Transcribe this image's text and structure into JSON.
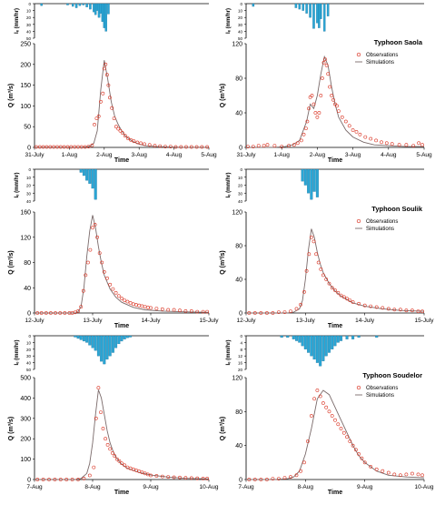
{
  "legend": {
    "observations": "Observations",
    "simulations": "Simulations"
  },
  "colors": {
    "rain": "#2aa6d5",
    "rain_stroke": "#1b6f98",
    "observed": "#d9301f",
    "simulated": "#7a6a6a",
    "axis": "#000000"
  },
  "chart_data": [
    {
      "id": "saola-1",
      "type": "line",
      "title": "",
      "xlabel": "Time",
      "ylabel": "Q (m³/s)",
      "rain_label": "Iₑ (mm/hr)",
      "x_range": [
        0,
        5
      ],
      "x_ticks": [
        "31-July",
        "1-Aug",
        "2-Aug",
        "3-Aug",
        "4-Aug",
        "5-Aug"
      ],
      "ylim": [
        0,
        250
      ],
      "y_ticks": [
        0,
        50,
        100,
        150,
        200,
        250
      ],
      "rain_ylim": [
        0,
        50
      ],
      "rain_ticks": [
        0,
        10,
        20,
        30,
        40,
        50
      ],
      "rainfall": {
        "t": [
          0.2,
          0.95,
          1.1,
          1.2,
          1.3,
          1.4,
          1.5,
          1.6,
          1.7,
          1.75,
          1.8,
          1.85,
          1.9,
          1.95,
          2.0,
          2.05,
          2.12
        ],
        "v": [
          3,
          2,
          4,
          6,
          3,
          2,
          5,
          8,
          12,
          16,
          10,
          20,
          14,
          26,
          35,
          40,
          15
        ]
      },
      "simulated": {
        "t": [
          0,
          1.0,
          1.3,
          1.5,
          1.6,
          1.7,
          1.8,
          1.9,
          2.0,
          2.1,
          2.2,
          2.3,
          2.4,
          2.5,
          2.6,
          2.8,
          3.0,
          3.2,
          3.5,
          3.8,
          4.2,
          5.0
        ],
        "v": [
          0,
          0,
          0,
          1,
          3,
          10,
          40,
          140,
          210,
          165,
          110,
          75,
          55,
          40,
          28,
          15,
          8,
          4,
          2,
          1,
          0,
          0
        ]
      },
      "observed": {
        "t": [
          0.05,
          0.15,
          0.25,
          0.35,
          0.45,
          0.55,
          0.65,
          0.75,
          0.85,
          0.95,
          1.05,
          1.15,
          1.25,
          1.35,
          1.45,
          1.55,
          1.65,
          1.72,
          1.78,
          1.84,
          1.9,
          1.96,
          2.0,
          2.04,
          2.08,
          2.12,
          2.16,
          2.22,
          2.28,
          2.34,
          2.4,
          2.46,
          2.52,
          2.6,
          2.68,
          2.76,
          2.85,
          2.95,
          3.05,
          3.15,
          3.3,
          3.45,
          3.6,
          3.75,
          3.9,
          4.05,
          4.2,
          4.35,
          4.5,
          4.65,
          4.8,
          4.95
        ],
        "v": [
          1,
          1,
          1,
          1,
          1,
          1,
          1,
          1,
          1,
          1,
          1,
          1,
          1,
          1,
          1,
          2,
          5,
          55,
          70,
          75,
          110,
          130,
          190,
          200,
          175,
          150,
          120,
          95,
          70,
          50,
          45,
          40,
          35,
          28,
          22,
          18,
          15,
          12,
          10,
          8,
          6,
          4,
          3,
          2,
          2,
          1,
          1,
          1,
          1,
          1,
          1,
          1
        ]
      }
    },
    {
      "id": "saola-2",
      "type": "line",
      "title": "Typhoon Saola",
      "xlabel": "Time",
      "ylabel": "Q (m³/s)",
      "rain_label": "Iₑ (mm/hr)",
      "x_range": [
        0,
        5
      ],
      "x_ticks": [
        "31-July",
        "1-Aug",
        "2-Aug",
        "3-Aug",
        "4-Aug",
        "5-Aug"
      ],
      "ylim": [
        0,
        120
      ],
      "y_ticks": [
        0,
        40,
        80,
        120
      ],
      "rain_ylim": [
        0,
        50
      ],
      "rain_ticks": [
        0,
        10,
        20,
        30,
        40,
        50
      ],
      "rainfall": {
        "t": [
          0.2,
          1.4,
          1.5,
          1.6,
          1.7,
          1.8,
          1.9,
          2.0,
          2.05,
          2.1,
          2.2,
          2.3
        ],
        "v": [
          4,
          6,
          8,
          10,
          14,
          20,
          36,
          28,
          35,
          22,
          40,
          18
        ]
      },
      "simulated": {
        "t": [
          0,
          0.8,
          1.1,
          1.3,
          1.5,
          1.7,
          1.8,
          1.9,
          2.0,
          2.1,
          2.2,
          2.3,
          2.4,
          2.5,
          2.6,
          2.8,
          3.0,
          3.3,
          3.6,
          4.0,
          4.5,
          5.0
        ],
        "v": [
          0,
          0,
          1,
          3,
          8,
          30,
          50,
          45,
          60,
          85,
          105,
          95,
          70,
          50,
          35,
          20,
          12,
          6,
          3,
          2,
          1,
          1
        ]
      },
      "observed": {
        "t": [
          0.05,
          0.2,
          0.35,
          0.5,
          0.6,
          0.8,
          1.0,
          1.2,
          1.35,
          1.45,
          1.55,
          1.62,
          1.68,
          1.72,
          1.76,
          1.8,
          1.85,
          1.9,
          1.95,
          2.0,
          2.05,
          2.1,
          2.14,
          2.18,
          2.22,
          2.26,
          2.3,
          2.35,
          2.4,
          2.45,
          2.5,
          2.55,
          2.6,
          2.7,
          2.8,
          2.9,
          3.0,
          3.1,
          3.2,
          3.35,
          3.5,
          3.65,
          3.8,
          3.95,
          4.1,
          4.3,
          4.5,
          4.7,
          4.85,
          4.95
        ],
        "v": [
          1,
          1,
          2,
          2,
          3,
          2,
          1,
          2,
          3,
          5,
          8,
          15,
          22,
          30,
          45,
          58,
          60,
          50,
          40,
          35,
          40,
          60,
          80,
          98,
          102,
          95,
          85,
          70,
          60,
          55,
          50,
          48,
          42,
          35,
          30,
          25,
          20,
          18,
          15,
          12,
          10,
          8,
          6,
          5,
          4,
          3,
          3,
          2,
          5,
          3
        ]
      }
    },
    {
      "id": "soulik-1",
      "type": "line",
      "title": "",
      "xlabel": "Time",
      "ylabel": "Q (m³/s)",
      "rain_label": "Iₑ (mm/hr)",
      "x_range": [
        0,
        3
      ],
      "x_ticks": [
        "12-July",
        "13-July",
        "14-July",
        "15-July"
      ],
      "ylim": [
        0,
        160
      ],
      "y_ticks": [
        0,
        40,
        80,
        120,
        160
      ],
      "rain_ylim": [
        0,
        40
      ],
      "rain_ticks": [
        0,
        10,
        20,
        30,
        40
      ],
      "rainfall": {
        "t": [
          0.8,
          0.85,
          0.9,
          0.95,
          1.0,
          1.05
        ],
        "v": [
          4,
          8,
          14,
          18,
          24,
          38
        ]
      },
      "simulated": {
        "t": [
          0,
          0.6,
          0.7,
          0.75,
          0.8,
          0.85,
          0.9,
          0.95,
          1.0,
          1.05,
          1.1,
          1.15,
          1.2,
          1.3,
          1.4,
          1.5,
          1.7,
          1.9,
          2.2,
          2.5,
          3.0
        ],
        "v": [
          0,
          0,
          0,
          2,
          10,
          40,
          90,
          130,
          155,
          135,
          105,
          80,
          60,
          38,
          25,
          17,
          9,
          5,
          3,
          2,
          1
        ]
      },
      "observed": {
        "t": [
          0.05,
          0.12,
          0.2,
          0.28,
          0.36,
          0.44,
          0.52,
          0.6,
          0.65,
          0.7,
          0.75,
          0.8,
          0.84,
          0.88,
          0.92,
          0.96,
          1.0,
          1.04,
          1.08,
          1.12,
          1.16,
          1.2,
          1.25,
          1.3,
          1.35,
          1.4,
          1.45,
          1.5,
          1.55,
          1.6,
          1.65,
          1.7,
          1.75,
          1.8,
          1.85,
          1.9,
          1.95,
          2.0,
          2.1,
          2.2,
          2.3,
          2.4,
          2.5,
          2.6,
          2.7,
          2.8,
          2.9,
          2.97
        ],
        "v": [
          0,
          0,
          0,
          0,
          0,
          0,
          0,
          0,
          0,
          1,
          3,
          10,
          35,
          60,
          80,
          100,
          135,
          140,
          120,
          95,
          80,
          65,
          55,
          45,
          38,
          32,
          27,
          23,
          20,
          18,
          16,
          14,
          13,
          12,
          11,
          10,
          9,
          8,
          7,
          6,
          5,
          5,
          4,
          3,
          3,
          2,
          2,
          2
        ]
      }
    },
    {
      "id": "soulik-2",
      "type": "line",
      "title": "Typhoon Soulik",
      "xlabel": "Time",
      "ylabel": "Q (m³/s)",
      "rain_label": "Iₑ (mm/hr)",
      "x_range": [
        0,
        3
      ],
      "x_ticks": [
        "12-July",
        "13-July",
        "14-July",
        "15-July"
      ],
      "ylim": [
        0,
        120
      ],
      "y_ticks": [
        0,
        40,
        80,
        120
      ],
      "rain_ylim": [
        0,
        40
      ],
      "rain_ticks": [
        0,
        10,
        20,
        30,
        40
      ],
      "rainfall": {
        "t": [
          0.95,
          1.0,
          1.05,
          1.1,
          1.15,
          1.2
        ],
        "v": [
          15,
          20,
          30,
          38,
          28,
          35
        ]
      },
      "simulated": {
        "t": [
          0,
          0.7,
          0.8,
          0.9,
          0.95,
          1.0,
          1.05,
          1.1,
          1.15,
          1.2,
          1.25,
          1.3,
          1.4,
          1.5,
          1.6,
          1.8,
          2.0,
          2.3,
          2.6,
          3.0
        ],
        "v": [
          0,
          0,
          1,
          5,
          15,
          40,
          75,
          100,
          90,
          72,
          58,
          48,
          35,
          26,
          20,
          12,
          8,
          5,
          3,
          2
        ]
      },
      "observed": {
        "t": [
          0.05,
          0.15,
          0.25,
          0.35,
          0.45,
          0.55,
          0.65,
          0.75,
          0.85,
          0.92,
          0.98,
          1.02,
          1.06,
          1.1,
          1.14,
          1.18,
          1.22,
          1.26,
          1.3,
          1.35,
          1.4,
          1.45,
          1.5,
          1.55,
          1.6,
          1.65,
          1.7,
          1.75,
          1.8,
          1.9,
          2.0,
          2.1,
          2.2,
          2.3,
          2.4,
          2.5,
          2.6,
          2.7,
          2.8,
          2.9,
          2.97
        ],
        "v": [
          0,
          0,
          0,
          0,
          0,
          1,
          1,
          2,
          5,
          10,
          25,
          50,
          70,
          90,
          85,
          70,
          60,
          52,
          45,
          40,
          35,
          30,
          27,
          24,
          21,
          19,
          17,
          15,
          13,
          11,
          9,
          8,
          7,
          6,
          5,
          4,
          4,
          3,
          3,
          2,
          2
        ]
      }
    },
    {
      "id": "soudelor-1",
      "type": "line",
      "title": "",
      "xlabel": "Time",
      "ylabel": "Q (m³/s)",
      "rain_label": "Iₑ (mm/hr)",
      "x_range": [
        0,
        3
      ],
      "x_ticks": [
        "7-Aug",
        "8-Aug",
        "9-Aug",
        "10-Aug"
      ],
      "ylim": [
        0,
        500
      ],
      "y_ticks": [
        0,
        100,
        200,
        300,
        400,
        500
      ],
      "rain_ylim": [
        0,
        50
      ],
      "rain_ticks": [
        0,
        10,
        20,
        30,
        40,
        50
      ],
      "rainfall": {
        "t": [
          0.7,
          0.75,
          0.8,
          0.85,
          0.9,
          0.95,
          1.0,
          1.05,
          1.1,
          1.15,
          1.2,
          1.25,
          1.3,
          1.35,
          1.4,
          1.45,
          1.5,
          1.55,
          1.6,
          1.65
        ],
        "v": [
          2,
          4,
          6,
          8,
          10,
          14,
          18,
          22,
          30,
          38,
          42,
          35,
          30,
          25,
          18,
          12,
          8,
          5,
          3,
          2
        ]
      },
      "simulated": {
        "t": [
          0,
          0.7,
          0.8,
          0.9,
          0.95,
          1.0,
          1.05,
          1.1,
          1.15,
          1.2,
          1.25,
          1.3,
          1.35,
          1.4,
          1.5,
          1.6,
          1.8,
          2.0,
          2.3,
          2.6,
          3.0
        ],
        "v": [
          0,
          0,
          5,
          30,
          80,
          180,
          320,
          440,
          400,
          320,
          240,
          180,
          140,
          110,
          75,
          55,
          35,
          22,
          12,
          6,
          3
        ]
      },
      "observed": {
        "t": [
          0.05,
          0.15,
          0.25,
          0.35,
          0.45,
          0.55,
          0.65,
          0.75,
          0.85,
          0.95,
          1.02,
          1.06,
          1.1,
          1.14,
          1.18,
          1.22,
          1.26,
          1.3,
          1.34,
          1.38,
          1.42,
          1.46,
          1.5,
          1.55,
          1.6,
          1.65,
          1.7,
          1.75,
          1.8,
          1.85,
          1.9,
          1.95,
          2.0,
          2.1,
          2.2,
          2.3,
          2.4,
          2.5,
          2.6,
          2.7,
          2.8,
          2.9,
          2.97
        ],
        "v": [
          0,
          0,
          0,
          0,
          0,
          0,
          0,
          0,
          5,
          20,
          60,
          300,
          450,
          330,
          250,
          200,
          170,
          150,
          130,
          115,
          100,
          90,
          80,
          70,
          60,
          55,
          50,
          45,
          40,
          35,
          30,
          25,
          20,
          18,
          15,
          13,
          11,
          10,
          8,
          7,
          6,
          5,
          5
        ]
      }
    },
    {
      "id": "soudelor-2",
      "type": "line",
      "title": "Typhoon Soudelor",
      "xlabel": "Time",
      "ylabel": "Q (m³/s)",
      "rain_label": "Iₑ (mm/hr)",
      "x_range": [
        0,
        3
      ],
      "x_ticks": [
        "7-Aug",
        "8-Aug",
        "9-Aug",
        "10-Aug"
      ],
      "ylim": [
        0,
        120
      ],
      "y_ticks": [
        0,
        40,
        80,
        120
      ],
      "rain_ylim": [
        0,
        20
      ],
      "rain_ticks": [
        0,
        4,
        8,
        12,
        16,
        20
      ],
      "rainfall": {
        "t": [
          0.6,
          0.7,
          0.8,
          0.85,
          0.9,
          0.95,
          1.0,
          1.05,
          1.1,
          1.15,
          1.2,
          1.25,
          1.3,
          1.35,
          1.4,
          1.45,
          1.5,
          1.55,
          1.6,
          1.7,
          1.8,
          1.9,
          2.2
        ],
        "v": [
          1,
          1,
          2,
          3,
          4,
          6,
          8,
          10,
          12,
          14,
          16,
          18,
          15,
          12,
          10,
          8,
          6,
          4,
          3,
          2,
          2,
          1,
          1
        ]
      },
      "simulated": {
        "t": [
          0,
          0.5,
          0.7,
          0.8,
          0.9,
          1.0,
          1.1,
          1.2,
          1.3,
          1.4,
          1.5,
          1.6,
          1.7,
          1.8,
          1.9,
          2.0,
          2.2,
          2.4,
          2.7,
          3.0
        ],
        "v": [
          0,
          0,
          1,
          3,
          10,
          30,
          60,
          95,
          105,
          100,
          85,
          70,
          55,
          40,
          28,
          20,
          10,
          5,
          3,
          2
        ]
      },
      "observed": {
        "t": [
          0.05,
          0.15,
          0.25,
          0.35,
          0.45,
          0.55,
          0.65,
          0.75,
          0.85,
          0.92,
          0.98,
          1.04,
          1.1,
          1.15,
          1.2,
          1.25,
          1.3,
          1.35,
          1.4,
          1.45,
          1.5,
          1.55,
          1.6,
          1.65,
          1.7,
          1.75,
          1.8,
          1.85,
          1.9,
          1.95,
          2.0,
          2.1,
          2.2,
          2.3,
          2.4,
          2.5,
          2.6,
          2.7,
          2.8,
          2.9,
          2.97
        ],
        "v": [
          0,
          0,
          0,
          0,
          1,
          1,
          2,
          3,
          5,
          10,
          20,
          45,
          75,
          95,
          105,
          98,
          90,
          85,
          80,
          75,
          70,
          65,
          60,
          55,
          50,
          45,
          40,
          35,
          30,
          25,
          20,
          15,
          12,
          10,
          8,
          6,
          5,
          6,
          7,
          6,
          5
        ]
      }
    }
  ]
}
